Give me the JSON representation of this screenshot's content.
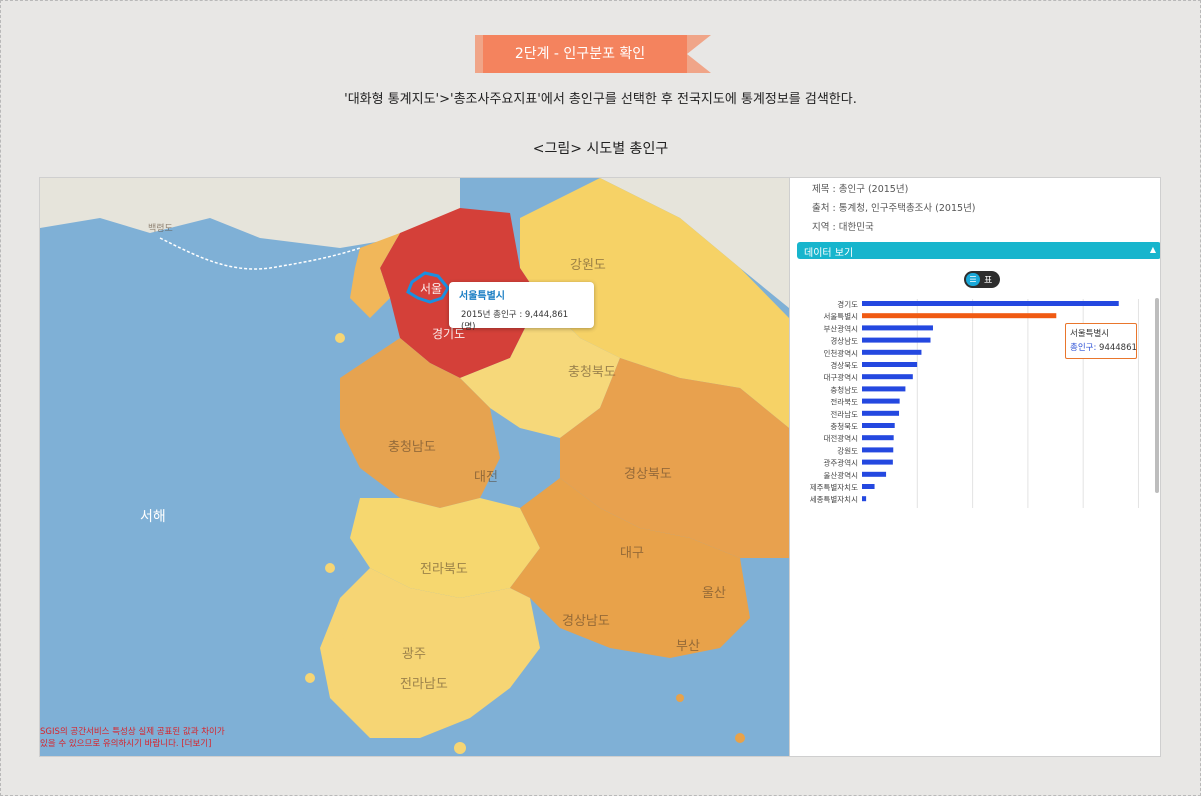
{
  "step": {
    "label": "2단계 - 인구분포 확인"
  },
  "instruction": "'대화형 통계지도'>'총조사주요지표'에서 총인구를 선택한 후 전국지도에 통계정보를 검색한다.",
  "figure_caption": "<그림> 시도별 총인구",
  "map": {
    "sea_label": "서해",
    "labels": {
      "baengnyeong": "백령도",
      "gangwon": "강원도",
      "gyeonggi": "경기도",
      "seoul": "서울",
      "chungbuk": "충청북도",
      "chungnam": "충청남도",
      "gyeongbuk": "경상북도",
      "jeonbuk": "전라북도",
      "gyeongnam": "경상남도",
      "jeonnam": "전라남도",
      "daejeon": "대전",
      "daegu": "대구",
      "ulsan": "울산",
      "busan": "부산",
      "gwangju": "광주"
    },
    "tooltip": {
      "title": "서울특별시",
      "value": "2015년 총인구 : 9,444,861 (명)"
    },
    "notice_line1": "SGIS의 공간서비스 특성상 실제 공표된 값과 차이가",
    "notice_line2": "있을 수 있으므로 유의하시기 바랍니다. [더보기]"
  },
  "meta": {
    "title_line": "제목 : 총인구 (2015년)",
    "source_line": "출처 : 통계청, 인구주택총조사 (2015년)",
    "region_line": "지역 : 대한민국"
  },
  "data_view": {
    "label": "데이터 보기",
    "arrow": "▲"
  },
  "view_toggle": {
    "icon": "☰",
    "label": "표"
  },
  "chart_tooltip": {
    "title": "서울특별시",
    "key": "총인구:",
    "value": "9444861"
  },
  "colors": {
    "bar_default": "#2448e0",
    "bar_highlight": "#f05a12",
    "header_bar": "#17b5cd",
    "choropleth_high": "#d6403a",
    "choropleth_mid": "#e8a24a",
    "choropleth_low": "#f7d77a"
  },
  "chart_data": {
    "type": "bar",
    "orientation": "horizontal",
    "categories": [
      "경기도",
      "서울특별시",
      "부산광역시",
      "경상남도",
      "인천광역시",
      "경상북도",
      "대구광역시",
      "충청남도",
      "전라북도",
      "전라남도",
      "충청북도",
      "대전광역시",
      "강원도",
      "광주광역시",
      "울산광역시",
      "제주특별자치도",
      "세종특별자치시"
    ],
    "values": [
      12480000,
      9444861,
      3450000,
      3330000,
      2890000,
      2680000,
      2470000,
      2110000,
      1830000,
      1800000,
      1590000,
      1540000,
      1520000,
      1500000,
      1170000,
      610000,
      200000
    ],
    "highlight": "서울특별시",
    "xlim": [
      0,
      14000000
    ],
    "grid": true
  }
}
